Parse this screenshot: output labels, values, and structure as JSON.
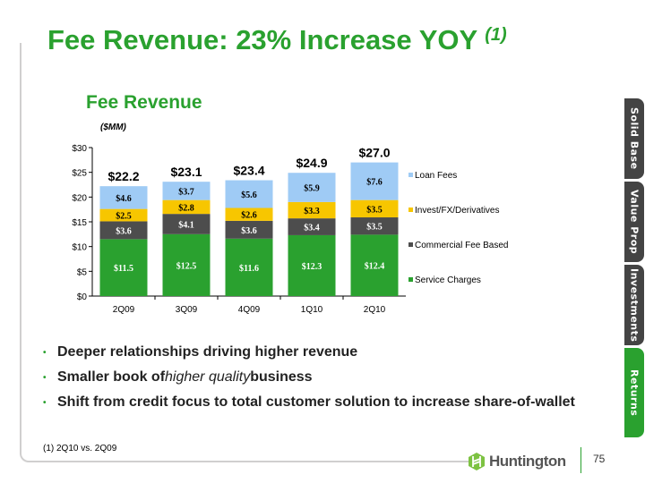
{
  "title": "Fee Revenue: 23% Increase YOY",
  "title_footnote_ref": "(1)",
  "chart_data": {
    "type": "bar",
    "stacked": true,
    "title": "Fee Revenue",
    "ylabel": "($MM)",
    "xlabel": "",
    "categories": [
      "2Q09",
      "3Q09",
      "4Q09",
      "1Q10",
      "2Q10"
    ],
    "series": [
      {
        "name": "Service Charges",
        "color": "#2aa12f",
        "values": [
          11.5,
          12.5,
          11.6,
          12.3,
          12.4
        ],
        "labels": [
          "$11.5",
          "$12.5",
          "$11.6",
          "$12.3",
          "$12.4"
        ]
      },
      {
        "name": "Commercial Fee Based",
        "color": "#4d4d4d",
        "values": [
          3.6,
          4.1,
          3.6,
          3.4,
          3.5
        ],
        "labels": [
          "$3.6",
          "$4.1",
          "$3.6",
          "$3.4",
          "$3.5"
        ]
      },
      {
        "name": "Invest/FX/Derivatives",
        "color": "#f7c600",
        "values": [
          2.5,
          2.8,
          2.6,
          3.3,
          3.5
        ],
        "labels": [
          "$2.5",
          "$2.8",
          "$2.6",
          "$3.3",
          "$3.5"
        ]
      },
      {
        "name": "Loan Fees",
        "color": "#9fcbf5",
        "values": [
          4.6,
          3.7,
          5.6,
          5.9,
          7.6
        ],
        "labels": [
          "$4.6",
          "$3.7",
          "$5.6",
          "$5.9",
          "$7.6"
        ]
      }
    ],
    "totals": [
      "$22.2",
      "$23.1",
      "$23.4",
      "$24.9",
      "$27.0"
    ],
    "total_values": [
      22.2,
      23.1,
      23.4,
      24.9,
      27.0
    ],
    "ylim": [
      0,
      30
    ],
    "yticks": [
      "$0",
      "$5",
      "$10",
      "$15",
      "$20",
      "$25",
      "$30"
    ],
    "ytick_values": [
      0,
      5,
      10,
      15,
      20,
      25,
      30
    ],
    "legend_position": "right",
    "grid": false
  },
  "bullets": [
    {
      "pre": "Deeper relationships driving higher revenue",
      "em": "",
      "post": ""
    },
    {
      "pre": "Smaller book of ",
      "em": "higher quality",
      "post": " business"
    },
    {
      "pre": "Shift from credit focus to total customer solution to increase share-of-wallet",
      "em": "",
      "post": ""
    }
  ],
  "footnote": "(1) 2Q10 vs. 2Q09",
  "side_tabs": [
    "Solid Base",
    "Value Prop",
    "Investments",
    "Returns"
  ],
  "active_tab": "Returns",
  "logo": "Huntington",
  "page_number": "75"
}
